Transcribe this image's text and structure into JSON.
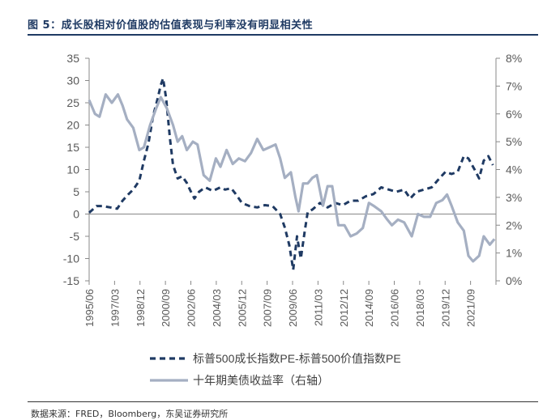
{
  "figure": {
    "title": "图 5：成长股相对价值股的估值表现与利率没有明显相关性",
    "source": "数据来源：FRED，Bloomberg，东吴证券研究所"
  },
  "colors": {
    "spread": "#1f3a63",
    "yield": "#a5afc2",
    "axis": "#888888",
    "text": "#595959"
  },
  "chart_data": {
    "type": "line",
    "title": "成长股相对价值股的估值表现与利率没有明显相关性",
    "x_tick_labels": [
      "1995/06",
      "1997/03",
      "1998/12",
      "2000/09",
      "2002/06",
      "2004/03",
      "2005/12",
      "2007/09",
      "2009/06",
      "2011/03",
      "2012/12",
      "2014/09",
      "2016/06",
      "2018/03",
      "2019/12",
      "2021/09"
    ],
    "x_range": [
      1995.42,
      2022.0
    ],
    "y_left": {
      "range": [
        -15,
        35
      ],
      "ticks": [
        -15,
        -10,
        -5,
        0,
        5,
        10,
        15,
        20,
        25,
        30,
        35
      ]
    },
    "y_right": {
      "range": [
        0,
        8
      ],
      "ticks": [
        "0%",
        "1%",
        "2%",
        "3%",
        "4%",
        "5%",
        "6%",
        "7%",
        "8%"
      ],
      "tick_values": [
        0,
        1,
        2,
        3,
        4,
        5,
        6,
        7,
        8
      ]
    },
    "series": [
      {
        "name": "标普500成长指数PE-标普500价值指数PE",
        "axis": "left",
        "style": "dashed",
        "points": [
          [
            1995.42,
            0.3
          ],
          [
            1995.9,
            1.8
          ],
          [
            1996.3,
            1.8
          ],
          [
            1996.8,
            1.5
          ],
          [
            1997.25,
            1.2
          ],
          [
            1997.6,
            3.0
          ],
          [
            1998.0,
            4.5
          ],
          [
            1998.3,
            5.5
          ],
          [
            1998.7,
            7.5
          ],
          [
            1999.0,
            12
          ],
          [
            1999.3,
            16
          ],
          [
            1999.6,
            22
          ],
          [
            1999.9,
            26
          ],
          [
            2000.1,
            29
          ],
          [
            2000.25,
            30.5
          ],
          [
            2000.45,
            26
          ],
          [
            2000.7,
            17
          ],
          [
            2000.9,
            11
          ],
          [
            2001.2,
            8
          ],
          [
            2001.5,
            8.5
          ],
          [
            2001.8,
            7
          ],
          [
            2002.0,
            5.5
          ],
          [
            2002.3,
            3.5
          ],
          [
            2002.6,
            5
          ],
          [
            2003.0,
            6
          ],
          [
            2003.5,
            5.2
          ],
          [
            2004.0,
            6
          ],
          [
            2004.3,
            5.5
          ],
          [
            2004.7,
            5.8
          ],
          [
            2005.0,
            4.5
          ],
          [
            2005.4,
            2.5
          ],
          [
            2005.9,
            1.8
          ],
          [
            2006.4,
            1.5
          ],
          [
            2006.9,
            2
          ],
          [
            2007.4,
            1.8
          ],
          [
            2007.9,
            0
          ],
          [
            2008.2,
            -3
          ],
          [
            2008.5,
            -7
          ],
          [
            2008.75,
            -12.5
          ],
          [
            2009.0,
            -5
          ],
          [
            2009.25,
            -10
          ],
          [
            2009.5,
            -4
          ],
          [
            2009.7,
            0.5
          ],
          [
            2010.0,
            1
          ],
          [
            2010.5,
            2.5
          ],
          [
            2011.0,
            1.5
          ],
          [
            2011.5,
            2.5
          ],
          [
            2012.0,
            2
          ],
          [
            2012.5,
            3
          ],
          [
            2013.0,
            3
          ],
          [
            2013.5,
            4
          ],
          [
            2014.0,
            4.5
          ],
          [
            2014.5,
            6
          ],
          [
            2015.0,
            5.5
          ],
          [
            2015.5,
            5
          ],
          [
            2016.0,
            5.5
          ],
          [
            2016.4,
            3.5
          ],
          [
            2016.8,
            5
          ],
          [
            2017.3,
            5.5
          ],
          [
            2017.8,
            6
          ],
          [
            2018.3,
            8
          ],
          [
            2018.7,
            9.5
          ],
          [
            2019.1,
            9
          ],
          [
            2019.5,
            9.5
          ],
          [
            2019.9,
            13
          ],
          [
            2020.2,
            12.5
          ],
          [
            2020.6,
            10
          ],
          [
            2020.9,
            8
          ],
          [
            2021.2,
            12
          ],
          [
            2021.5,
            13
          ],
          [
            2021.8,
            11
          ]
        ]
      },
      {
        "name": "十年期美债收益率（右轴）",
        "axis": "right",
        "style": "solid",
        "points": [
          [
            1995.42,
            6.5
          ],
          [
            1995.8,
            6.0
          ],
          [
            1996.1,
            5.9
          ],
          [
            1996.5,
            6.7
          ],
          [
            1996.9,
            6.4
          ],
          [
            1997.3,
            6.7
          ],
          [
            1997.6,
            6.3
          ],
          [
            1997.9,
            5.8
          ],
          [
            1998.3,
            5.5
          ],
          [
            1998.7,
            4.7
          ],
          [
            1999.0,
            4.8
          ],
          [
            1999.4,
            5.6
          ],
          [
            1999.8,
            6.2
          ],
          [
            2000.1,
            6.6
          ],
          [
            2000.5,
            6.2
          ],
          [
            2000.9,
            5.6
          ],
          [
            2001.2,
            5.0
          ],
          [
            2001.5,
            5.2
          ],
          [
            2001.8,
            4.7
          ],
          [
            2002.2,
            5.0
          ],
          [
            2002.5,
            4.9
          ],
          [
            2002.9,
            3.8
          ],
          [
            2003.3,
            3.6
          ],
          [
            2003.7,
            4.4
          ],
          [
            2004.0,
            4.1
          ],
          [
            2004.4,
            4.7
          ],
          [
            2004.8,
            4.2
          ],
          [
            2005.2,
            4.4
          ],
          [
            2005.6,
            4.3
          ],
          [
            2006.0,
            4.6
          ],
          [
            2006.4,
            5.1
          ],
          [
            2006.8,
            4.7
          ],
          [
            2007.2,
            4.8
          ],
          [
            2007.6,
            4.9
          ],
          [
            2007.9,
            4.4
          ],
          [
            2008.2,
            3.7
          ],
          [
            2008.6,
            3.9
          ],
          [
            2008.9,
            3.0
          ],
          [
            2009.1,
            2.5
          ],
          [
            2009.4,
            3.5
          ],
          [
            2009.7,
            3.5
          ],
          [
            2010.0,
            3.7
          ],
          [
            2010.3,
            3.8
          ],
          [
            2010.7,
            2.7
          ],
          [
            2011.0,
            3.4
          ],
          [
            2011.3,
            3.4
          ],
          [
            2011.7,
            2.0
          ],
          [
            2012.1,
            2.0
          ],
          [
            2012.5,
            1.6
          ],
          [
            2012.9,
            1.7
          ],
          [
            2013.3,
            1.9
          ],
          [
            2013.7,
            2.8
          ],
          [
            2014.0,
            2.7
          ],
          [
            2014.5,
            2.5
          ],
          [
            2014.9,
            2.2
          ],
          [
            2015.2,
            2.0
          ],
          [
            2015.6,
            2.2
          ],
          [
            2016.0,
            2.1
          ],
          [
            2016.5,
            1.6
          ],
          [
            2016.9,
            2.4
          ],
          [
            2017.3,
            2.3
          ],
          [
            2017.7,
            2.3
          ],
          [
            2018.1,
            2.8
          ],
          [
            2018.5,
            2.9
          ],
          [
            2018.8,
            3.1
          ],
          [
            2019.1,
            2.7
          ],
          [
            2019.5,
            2.1
          ],
          [
            2019.9,
            1.8
          ],
          [
            2020.2,
            0.9
          ],
          [
            2020.5,
            0.7
          ],
          [
            2020.9,
            0.9
          ],
          [
            2021.2,
            1.6
          ],
          [
            2021.6,
            1.3
          ],
          [
            2021.9,
            1.5
          ]
        ]
      }
    ],
    "legend": "bottom"
  }
}
